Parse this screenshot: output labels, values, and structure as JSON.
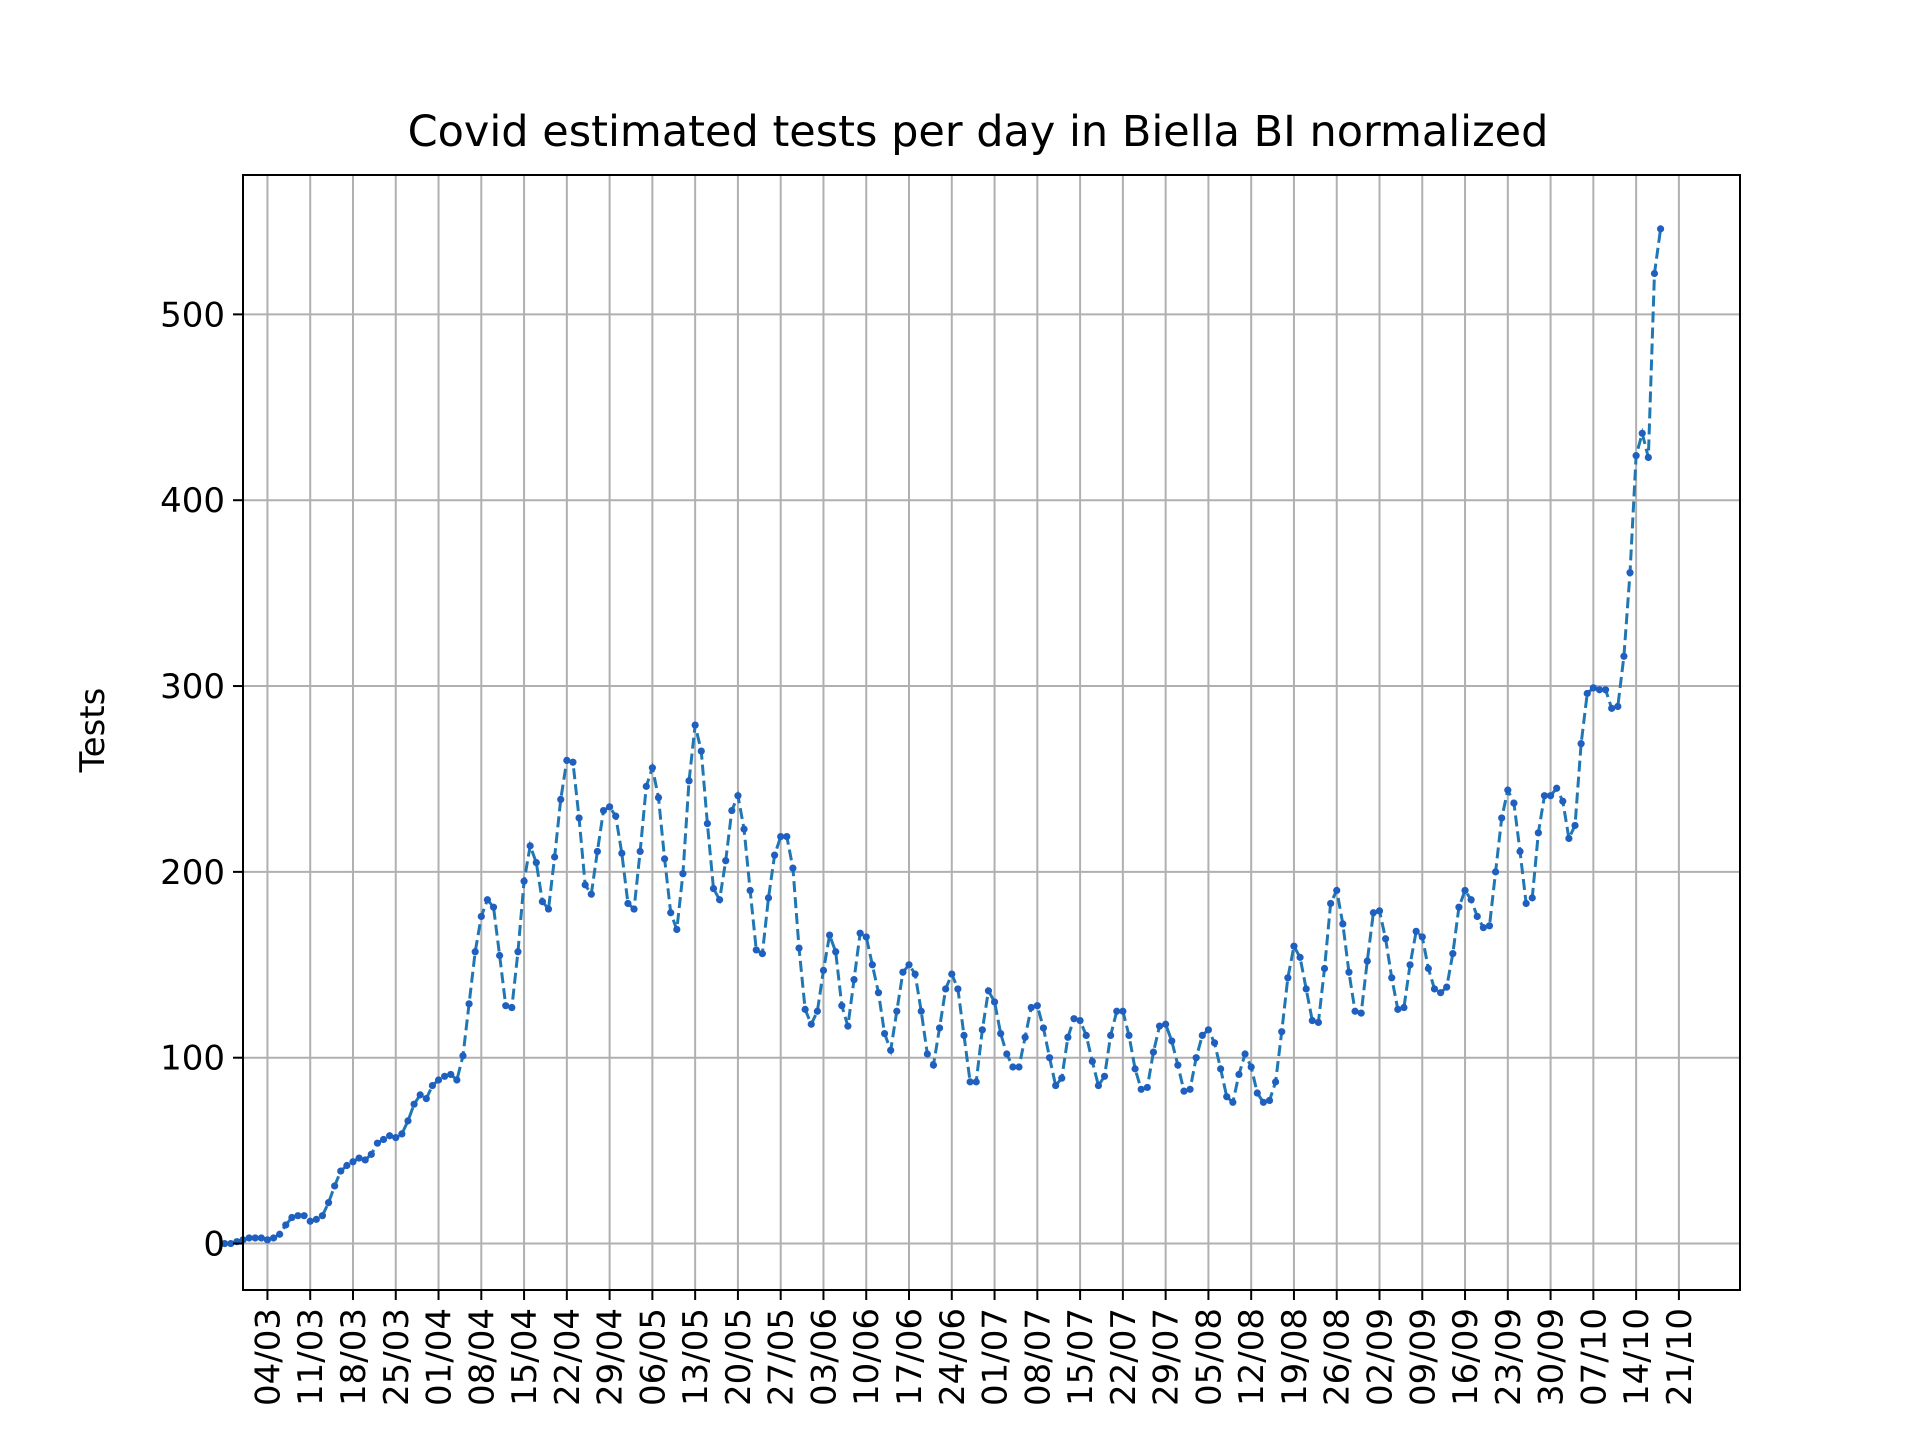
{
  "chart_data": {
    "type": "line",
    "title": "Covid estimated tests per day in Biella BI normalized",
    "xlabel": "",
    "ylabel": "Tests",
    "grid": true,
    "x_range": [
      "2020-02-29",
      "2020-10-31"
    ],
    "ylim": [
      -25,
      575
    ],
    "y_ticks": [
      0,
      100,
      200,
      300,
      400,
      500
    ],
    "x_tick_dates": [
      "2020-03-04",
      "2020-03-11",
      "2020-03-18",
      "2020-03-25",
      "2020-04-01",
      "2020-04-08",
      "2020-04-15",
      "2020-04-22",
      "2020-04-29",
      "2020-05-06",
      "2020-05-13",
      "2020-05-20",
      "2020-05-27",
      "2020-06-03",
      "2020-06-10",
      "2020-06-17",
      "2020-06-24",
      "2020-07-01",
      "2020-07-08",
      "2020-07-15",
      "2020-07-22",
      "2020-07-29",
      "2020-08-05",
      "2020-08-12",
      "2020-08-19",
      "2020-08-26",
      "2020-09-02",
      "2020-09-09",
      "2020-09-16",
      "2020-09-23",
      "2020-09-30",
      "2020-10-07",
      "2020-10-14",
      "2020-10-21"
    ],
    "x_tick_labels": [
      "04/03",
      "11/03",
      "18/03",
      "25/03",
      "01/04",
      "08/04",
      "15/04",
      "22/04",
      "29/04",
      "06/05",
      "13/05",
      "20/05",
      "27/05",
      "03/06",
      "10/06",
      "17/06",
      "24/06",
      "01/07",
      "08/07",
      "15/07",
      "22/07",
      "29/07",
      "05/08",
      "12/08",
      "19/08",
      "26/08",
      "02/09",
      "09/09",
      "16/09",
      "23/09",
      "30/09",
      "07/10",
      "14/10",
      "21/10"
    ],
    "series": [
      {
        "name": "",
        "color": "#1f77b4",
        "marker_color": "#1f5fbf",
        "line_style": "dashed",
        "start_date": "2020-02-26",
        "values": [
          0,
          0,
          1,
          2,
          3,
          3,
          3,
          2,
          3,
          5,
          10,
          14,
          15,
          15,
          12,
          13,
          15,
          22,
          31,
          39,
          42,
          44,
          46,
          45,
          48,
          54,
          56,
          58,
          57,
          59,
          66,
          75,
          80,
          78,
          85,
          88,
          90,
          91,
          88,
          101,
          129,
          157,
          176,
          185,
          181,
          155,
          128,
          127,
          157,
          195,
          214,
          205,
          184,
          180,
          208,
          239,
          260,
          259,
          229,
          193,
          188,
          211,
          233,
          235,
          230,
          210,
          183,
          180,
          211,
          246,
          256,
          240,
          207,
          178,
          169,
          199,
          249,
          279,
          265,
          226,
          191,
          185,
          206,
          233,
          241,
          223,
          190,
          158,
          156,
          186,
          209,
          219,
          219,
          202,
          159,
          126,
          118,
          125,
          147,
          166,
          157,
          128,
          117,
          142,
          167,
          165,
          150,
          135,
          113,
          104,
          125,
          146,
          150,
          145,
          125,
          102,
          96,
          116,
          137,
          145,
          137,
          112,
          87,
          87,
          115,
          136,
          130,
          113,
          102,
          95,
          95,
          111,
          127,
          128,
          116,
          100,
          85,
          89,
          111,
          121,
          120,
          112,
          98,
          85,
          90,
          112,
          125,
          125,
          112,
          94,
          83,
          84,
          103,
          117,
          118,
          109,
          96,
          82,
          83,
          100,
          112,
          115,
          108,
          94,
          79,
          76,
          91,
          102,
          95,
          81,
          76,
          77,
          87,
          114,
          143,
          160,
          154,
          137,
          120,
          119,
          148,
          183,
          190,
          172,
          146,
          125,
          124,
          152,
          178,
          179,
          164,
          143,
          126,
          127,
          150,
          168,
          165,
          148,
          137,
          135,
          138,
          156,
          181,
          190,
          185,
          176,
          170,
          171,
          200,
          229,
          244,
          237,
          211,
          183,
          186,
          221,
          241,
          241,
          245,
          238,
          218,
          225,
          269,
          296,
          299,
          298,
          298,
          288,
          289,
          316,
          361,
          424,
          436,
          423,
          522,
          546
        ]
      }
    ]
  }
}
